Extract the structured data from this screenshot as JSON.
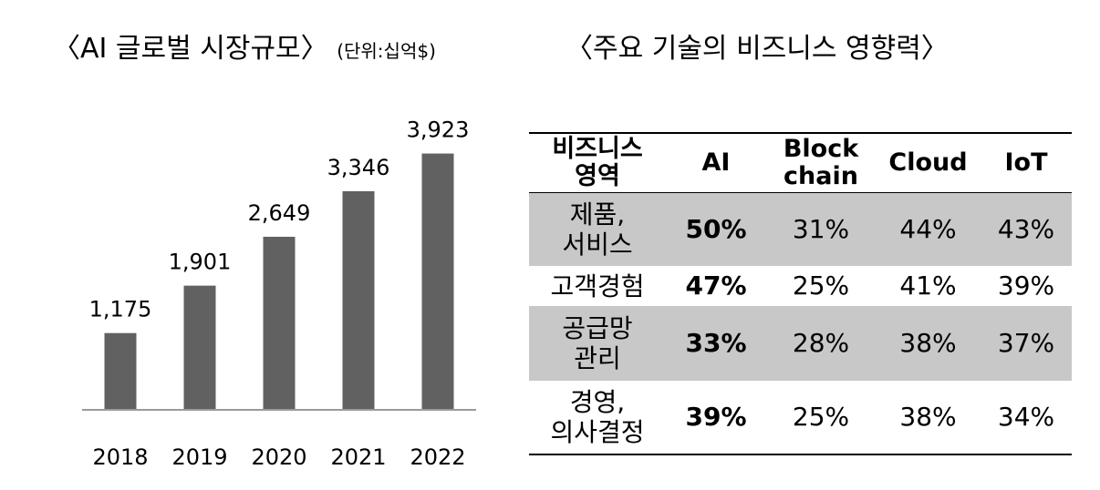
{
  "chart_title": {
    "main": "〈AI 글로벌 시장규모〉",
    "unit": "(단위:십억$)"
  },
  "table_title": "〈주요 기술의 비즈니스 영향력〉",
  "chart_data": {
    "type": "bar",
    "categories": [
      "2018",
      "2019",
      "2020",
      "2021",
      "2022"
    ],
    "values": [
      1175,
      1901,
      2649,
      3346,
      3923
    ],
    "value_labels": [
      "1,175",
      "1,901",
      "2,649",
      "3,346",
      "3,923"
    ],
    "bar_color": "#616161",
    "ylim": [
      0,
      4600
    ],
    "grid": false
  },
  "table": {
    "headers": [
      [
        "비즈니스",
        "영역"
      ],
      [
        "AI"
      ],
      [
        "Block",
        "chain"
      ],
      [
        "Cloud"
      ],
      [
        "IoT"
      ]
    ],
    "rows": [
      {
        "area": [
          "제품,",
          "서비스"
        ],
        "values": [
          "50%",
          "31%",
          "44%",
          "43%"
        ],
        "shaded": true
      },
      {
        "area": [
          "고객경험"
        ],
        "values": [
          "47%",
          "25%",
          "41%",
          "39%"
        ],
        "shaded": false
      },
      {
        "area": [
          "공급망",
          "관리"
        ],
        "values": [
          "33%",
          "28%",
          "38%",
          "37%"
        ],
        "shaded": true
      },
      {
        "area": [
          "경영,",
          "의사결정"
        ],
        "values": [
          "39%",
          "25%",
          "38%",
          "34%"
        ],
        "shaded": false
      }
    ],
    "shade_color": "#c8c8c8"
  }
}
